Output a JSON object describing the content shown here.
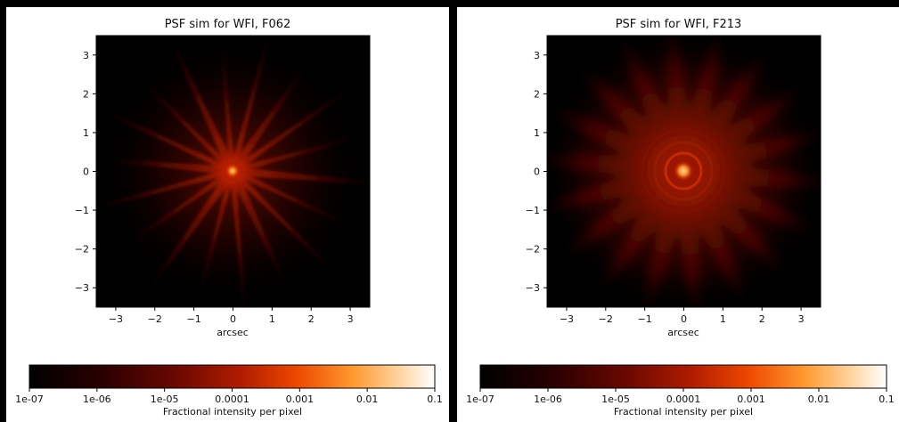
{
  "panels": [
    {
      "title": "PSF sim for WFI, F062",
      "xlabel": "arcsec",
      "axis": {
        "xlim": [
          -3.5,
          3.5
        ],
        "ylim": [
          -3.5,
          3.5
        ]
      },
      "x_ticks": [
        "−3",
        "−2",
        "−1",
        "0",
        "1",
        "2",
        "3"
      ],
      "y_ticks": [
        "3",
        "2",
        "1",
        "0",
        "−1",
        "−2",
        "−3"
      ],
      "colorbar": {
        "ticks": [
          "1e-07",
          "1e-06",
          "1e-05",
          "0.0001",
          "0.001",
          "0.01",
          "0.1"
        ],
        "label": "Fractional intensity per pixel"
      },
      "psf": {
        "spikes": 18,
        "core": "compact",
        "colormap": "gist_heat"
      }
    },
    {
      "title": "PSF sim for WFI, F213",
      "xlabel": "arcsec",
      "axis": {
        "xlim": [
          -3.5,
          3.5
        ],
        "ylim": [
          -3.5,
          3.5
        ]
      },
      "x_ticks": [
        "−3",
        "−2",
        "−1",
        "0",
        "1",
        "2",
        "3"
      ],
      "y_ticks": [
        "3",
        "2",
        "1",
        "0",
        "−1",
        "−2",
        "−3"
      ],
      "colorbar": {
        "ticks": [
          "1e-07",
          "1e-06",
          "1e-05",
          "0.0001",
          "0.001",
          "0.01",
          "0.1"
        ],
        "label": "Fractional intensity per pixel"
      },
      "psf": {
        "spikes": 18,
        "core": "ringed",
        "colormap": "gist_heat"
      }
    }
  ],
  "colors": {
    "cmap": [
      "#000000",
      "#3a0000",
      "#7a0c00",
      "#c42400",
      "#ff6a00",
      "#ffb060",
      "#ffffff"
    ]
  }
}
